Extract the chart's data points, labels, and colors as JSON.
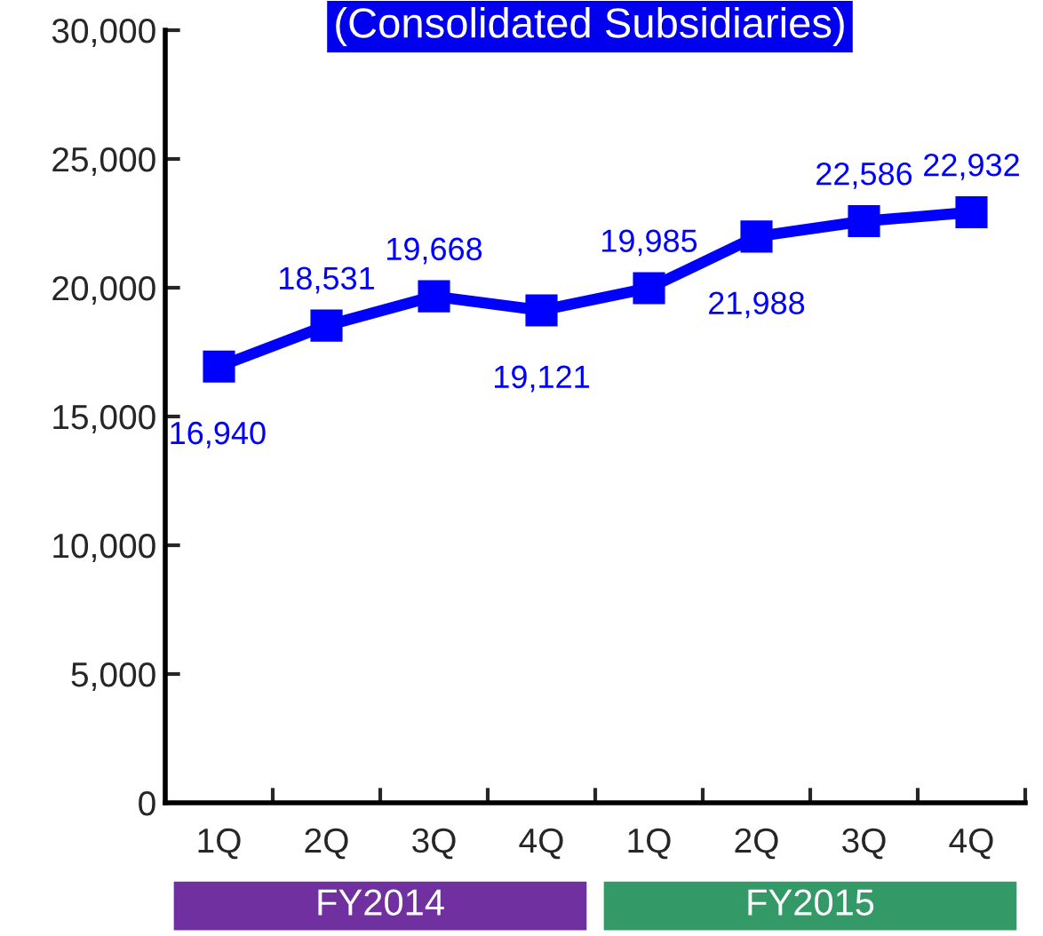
{
  "chart_data": {
    "type": "line",
    "title": "(Consolidated Subsidiaries)",
    "categories": [
      "1Q",
      "2Q",
      "3Q",
      "4Q",
      "1Q",
      "2Q",
      "3Q",
      "4Q"
    ],
    "series": [
      {
        "color": "#0000ff",
        "values": [
          16940,
          18531,
          19668,
          19121,
          19985,
          21988,
          22586,
          22932
        ],
        "value_labels": [
          "16,940",
          "18,531",
          "19,668",
          "19,121",
          "19,985",
          "21,988",
          "22,586",
          "22,932"
        ]
      }
    ],
    "ylim": [
      0,
      30000
    ],
    "yticks": [
      {
        "value": 0,
        "label": "0"
      },
      {
        "value": 5000,
        "label": "5,000"
      },
      {
        "value": 10000,
        "label": "10,000"
      },
      {
        "value": 15000,
        "label": "15,000"
      },
      {
        "value": 20000,
        "label": "20,000"
      },
      {
        "value": 25000,
        "label": "25,000"
      },
      {
        "value": 30000,
        "label": "30,000"
      }
    ],
    "annotations": [
      "FY2014",
      "FY2015"
    ],
    "marker": "square",
    "line_style": "solid",
    "grid": false,
    "legend": false
  }
}
